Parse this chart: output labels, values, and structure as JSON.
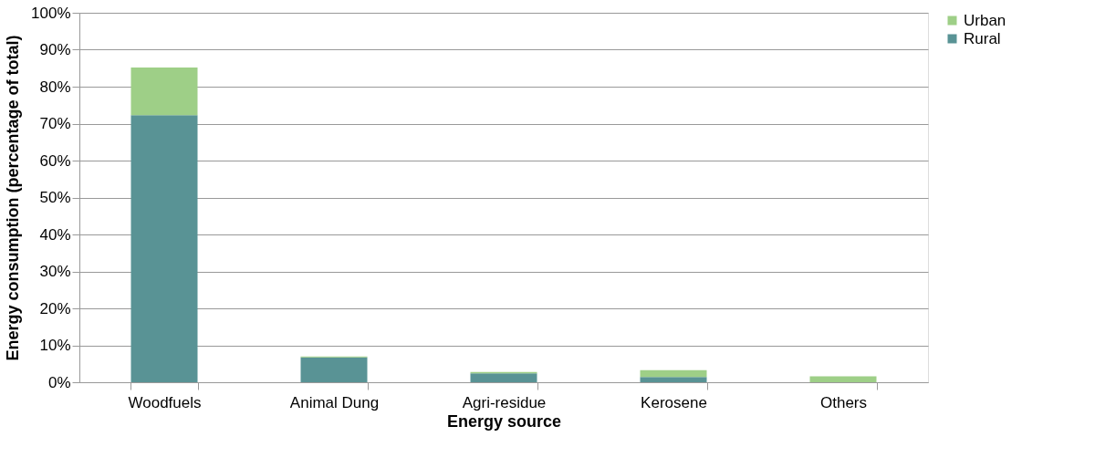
{
  "chart_data": {
    "type": "bar",
    "stacked": true,
    "xlabel": "Energy source",
    "ylabel": "Energy consumption (percentage of total)",
    "categories": [
      "Woodfuels",
      "Animal Dung",
      "Agri-residue",
      "Kerosene",
      "Others"
    ],
    "series": [
      {
        "name": "Rural",
        "color": "#599395",
        "values": [
          72.3,
          6.7,
          2.4,
          1.4,
          0
        ]
      },
      {
        "name": "Urban",
        "color": "#9ecf87",
        "values": [
          12.9,
          0.3,
          0.4,
          1.9,
          1.6
        ]
      }
    ],
    "ylim": [
      0,
      100
    ],
    "yticks": [
      {
        "value": 0,
        "label": "0%"
      },
      {
        "value": 10,
        "label": "10%"
      },
      {
        "value": 20,
        "label": "20%"
      },
      {
        "value": 30,
        "label": "30%"
      },
      {
        "value": 40,
        "label": "40%"
      },
      {
        "value": 50,
        "label": "50%"
      },
      {
        "value": 60,
        "label": "60%"
      },
      {
        "value": 70,
        "label": "70%"
      },
      {
        "value": 80,
        "label": "80%"
      },
      {
        "value": 90,
        "label": "90%"
      },
      {
        "value": 100,
        "label": "100%"
      }
    ],
    "grid": "y",
    "legend": "right"
  }
}
